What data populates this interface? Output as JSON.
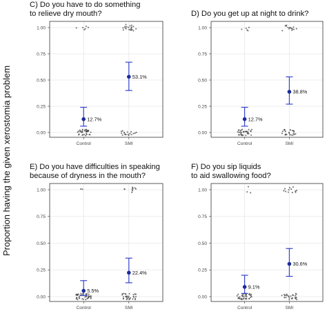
{
  "figure": {
    "ylabel": "Proportion having the given xerostomia problem"
  },
  "chart_data": [
    {
      "type": "scatter",
      "title": [
        "C) Do you have to do something",
        "to relieve dry mouth?"
      ],
      "categories": [
        "Control",
        "SMI"
      ],
      "yticks": [
        "0.00",
        "0.25",
        "0.50",
        "0.75",
        "1.00"
      ],
      "ylim": [
        0,
        1
      ],
      "grid": true,
      "estimates": [
        0.127,
        0.531
      ],
      "ci_low": [
        0.06,
        0.4
      ],
      "ci_high": [
        0.24,
        0.67
      ],
      "labels": [
        "12.7%",
        "53.1%"
      ],
      "jitter_counts": {
        "control_zero": 34,
        "control_one": 6,
        "smi_zero": 18,
        "smi_one": 20
      }
    },
    {
      "type": "scatter",
      "title": [
        "D) Do you get up at night to drink?"
      ],
      "categories": [
        "Control",
        "SMI"
      ],
      "yticks": [
        "0.00",
        "0.25",
        "0.50",
        "0.75",
        "1.00"
      ],
      "ylim": [
        0,
        1
      ],
      "grid": true,
      "estimates": [
        0.127,
        0.388
      ],
      "ci_low": [
        0.06,
        0.27
      ],
      "ci_high": [
        0.24,
        0.53
      ],
      "labels": [
        "12.7%",
        "38.8%"
      ],
      "jitter_counts": {
        "control_zero": 34,
        "control_one": 5,
        "smi_zero": 24,
        "smi_one": 14
      }
    },
    {
      "type": "scatter",
      "title": [
        "E) Do you have difficulties in speaking",
        "because of dryness in the mouth?"
      ],
      "categories": [
        "Control",
        "SMI"
      ],
      "yticks": [
        "0.00",
        "0.25",
        "0.50",
        "0.75",
        "1.00"
      ],
      "ylim": [
        0,
        1
      ],
      "grid": true,
      "estimates": [
        0.055,
        0.224
      ],
      "ci_low": [
        0.01,
        0.13
      ],
      "ci_high": [
        0.15,
        0.36
      ],
      "labels": [
        "5.5%",
        "22.4%"
      ],
      "jitter_counts": {
        "control_zero": 40,
        "control_one": 2,
        "smi_zero": 30,
        "smi_one": 10
      }
    },
    {
      "type": "scatter",
      "title": [
        "F) Do you sip liquids",
        "to aid swallowing food?"
      ],
      "categories": [
        "Control",
        "SMI"
      ],
      "yticks": [
        "0.00",
        "0.25",
        "0.50",
        "0.75",
        "1.00"
      ],
      "ylim": [
        0,
        1
      ],
      "grid": true,
      "estimates": [
        0.091,
        0.306
      ],
      "ci_low": [
        0.03,
        0.19
      ],
      "ci_high": [
        0.2,
        0.45
      ],
      "labels": [
        "9.1%",
        "30.6%"
      ],
      "jitter_counts": {
        "control_zero": 38,
        "control_one": 3,
        "smi_zero": 26,
        "smi_one": 12
      }
    }
  ],
  "colors": {
    "estimate": "#1c2b99",
    "errorbar": "#3344cc",
    "jitter": "#444444",
    "grid": "#e6e6e6",
    "frame": "#333333"
  }
}
